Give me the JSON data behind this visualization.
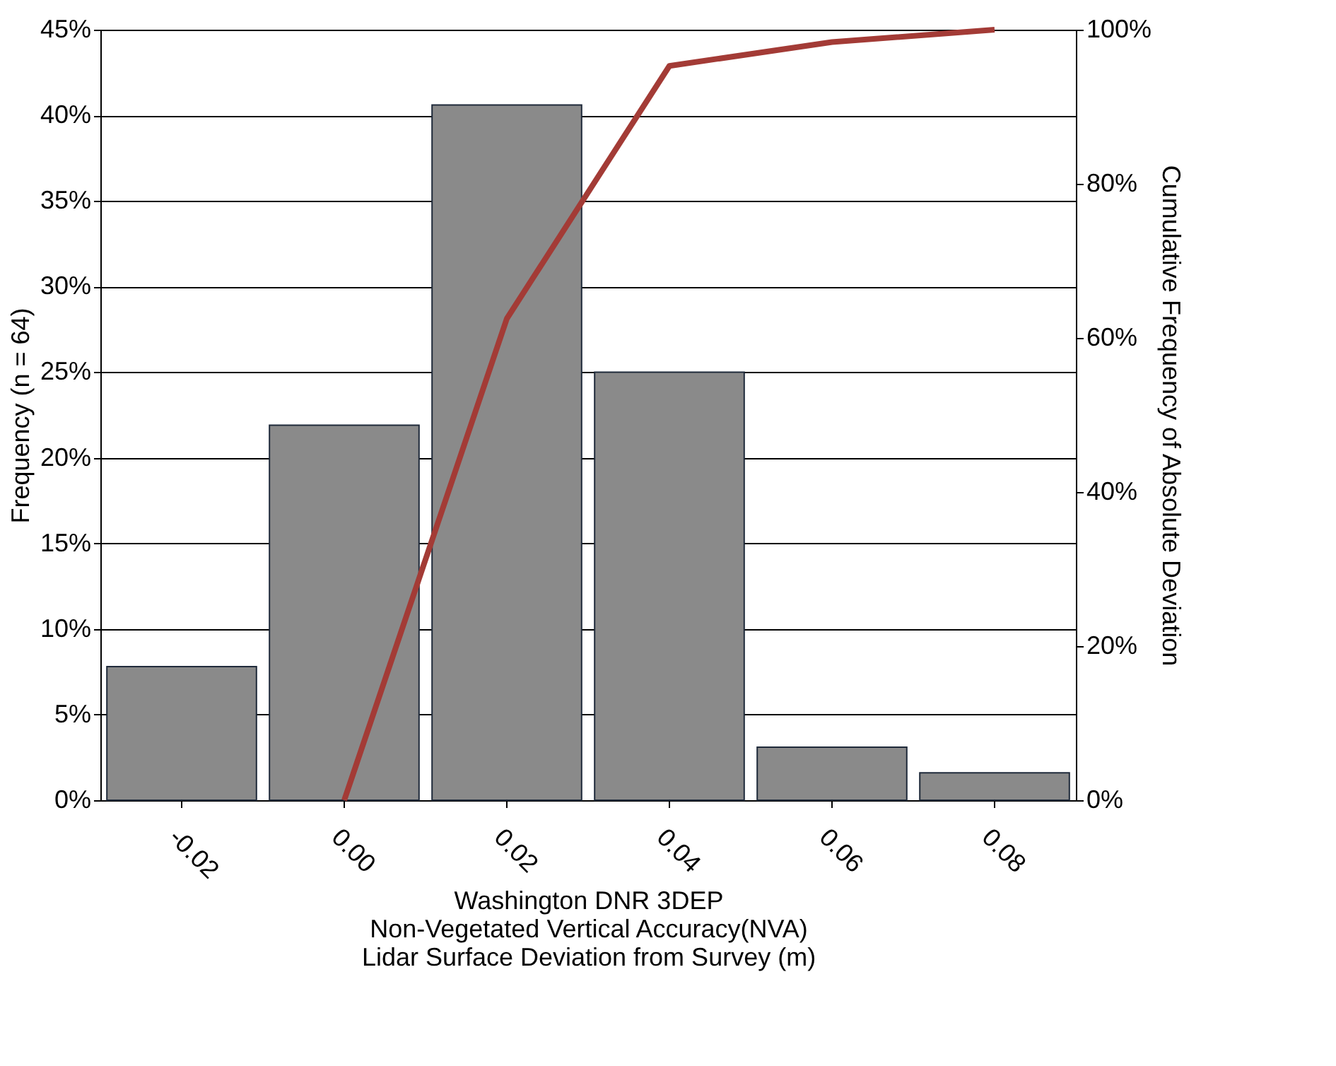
{
  "chart_data": {
    "type": "bar",
    "xlabel": "Washington DNR 3DEP\nNon-Vegetated Vertical Accuracy(NVA)\nLidar Surface Deviation from Survey (m)",
    "ylabel": "Frequency (n = 64)",
    "y2label": "Cumulative Frequency of Absolute Deviation",
    "categories": [
      "-0.02",
      "0.00",
      "0.02",
      "0.04",
      "0.06",
      "0.08"
    ],
    "series": [
      {
        "color": "#8a8a8a",
        "values": [
          7.8,
          21.9,
          40.6,
          25.0,
          3.1,
          1.6
        ]
      },
      {
        "type": "line",
        "axis": "y2",
        "color": "#a33b36",
        "values": [
          null,
          0,
          62.5,
          95.3,
          98.4,
          100
        ]
      }
    ],
    "ylim": [
      0,
      45
    ],
    "yticks": [
      {
        "value": 0,
        "label": "0%"
      },
      {
        "value": 5,
        "label": "5%"
      },
      {
        "value": 10,
        "label": "10%"
      },
      {
        "value": 15,
        "label": "15%"
      },
      {
        "value": 20,
        "label": "20%"
      },
      {
        "value": 25,
        "label": "25%"
      },
      {
        "value": 30,
        "label": "30%"
      },
      {
        "value": 35,
        "label": "35%"
      },
      {
        "value": 40,
        "label": "40%"
      },
      {
        "value": 45,
        "label": "45%"
      }
    ],
    "y2lim": [
      0,
      100
    ],
    "y2ticks": [
      {
        "value": 0,
        "label": "0%"
      },
      {
        "value": 20,
        "label": "20%"
      },
      {
        "value": 40,
        "label": "40%"
      },
      {
        "value": 60,
        "label": "60%"
      },
      {
        "value": 80,
        "label": "80%"
      },
      {
        "value": 100,
        "label": "100%"
      }
    ],
    "grid": "y",
    "marker": "none",
    "line_style": "solid"
  }
}
